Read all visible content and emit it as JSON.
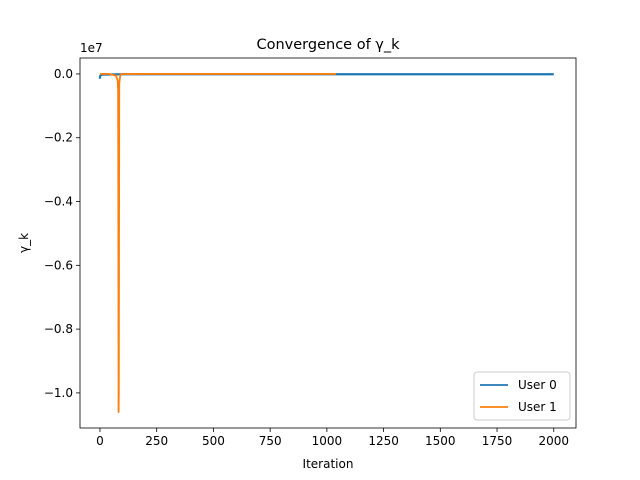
{
  "chart_data": {
    "type": "line",
    "title": "Convergence of γ_k",
    "xlabel": "Iteration",
    "ylabel": "γ_k",
    "y_offset_label": "1e7",
    "y_scale": 10000000,
    "xlim": [
      -88,
      2098
    ],
    "ylim": [
      -11100000,
      500000
    ],
    "xticks": [
      0,
      250,
      500,
      750,
      1000,
      1250,
      1500,
      1750,
      2000
    ],
    "xtick_labels": [
      "0",
      "250",
      "500",
      "750",
      "1000",
      "1250",
      "1500",
      "1750",
      "2000"
    ],
    "yticks": [
      0,
      -2000000,
      -4000000,
      -6000000,
      -8000000,
      -10000000
    ],
    "ytick_labels": [
      "0.0",
      "−0.2",
      "−0.4",
      "−0.6",
      "−0.8",
      "−1.0"
    ],
    "grid": false,
    "legend_position": "lower-right",
    "series": [
      {
        "name": "User 0",
        "color": "#1f77b4",
        "x": [
          0,
          0,
          1,
          3,
          10,
          100,
          500,
          1000,
          1500,
          2000
        ],
        "y": [
          -150000,
          -100000,
          -60000,
          -40000,
          -20000,
          -10000,
          -10000,
          -10000,
          -10000,
          -10000
        ]
      },
      {
        "name": "User 1",
        "color": "#ff7f0e",
        "x": [
          0,
          10,
          40,
          70,
          78,
          80,
          81,
          82,
          83,
          85,
          90,
          200,
          500,
          1000,
          1040
        ],
        "y": [
          0,
          0,
          0,
          -50000,
          -200000,
          -500000,
          -4000000,
          -10600000,
          -10000000,
          -300000,
          -5000,
          0,
          0,
          0,
          0
        ]
      }
    ]
  }
}
